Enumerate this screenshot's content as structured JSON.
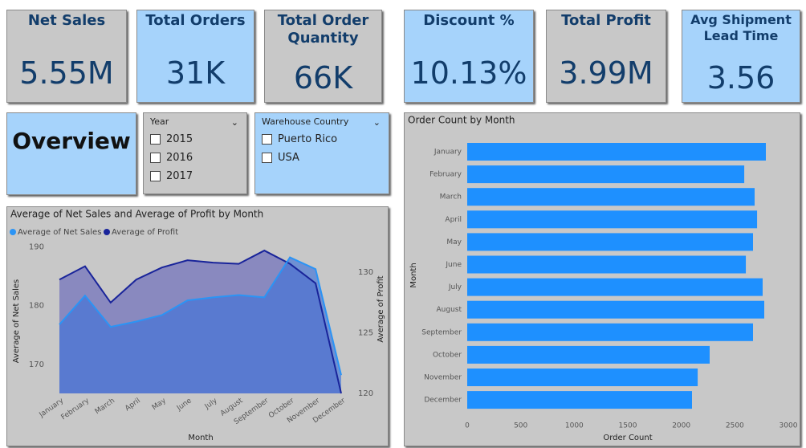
{
  "kpis": [
    {
      "label": "Net Sales",
      "value": "5.55M"
    },
    {
      "label": "Total Orders",
      "value": "31K"
    },
    {
      "label": "Total Order Quantity",
      "value": "66K"
    },
    {
      "label": "Discount %",
      "value": "10.13%"
    },
    {
      "label": "Total Profit",
      "value": "3.99M"
    },
    {
      "label": "Avg Shipment Lead Time",
      "value": "3.56"
    }
  ],
  "overview": "Overview",
  "slicers": [
    {
      "title": "Year",
      "options": [
        "2015",
        "2016",
        "2017"
      ]
    },
    {
      "title": "Warehouse Country",
      "options": [
        "Puerto Rico",
        "USA"
      ]
    }
  ],
  "chart_data": [
    {
      "type": "area",
      "title": "Average of Net Sales and Average of Profit by Month",
      "x_label": "Month",
      "y_label": "Average of Net Sales",
      "y2_label": "Average of Profit",
      "categories": [
        "January",
        "February",
        "March",
        "April",
        "May",
        "June",
        "July",
        "August",
        "September",
        "October",
        "November",
        "December"
      ],
      "series": [
        {
          "name": "Average of Net Sales",
          "color": "#2b94f5",
          "values": [
            176.8,
            181.7,
            176.4,
            177.3,
            178.4,
            180.9,
            181.4,
            181.8,
            181.4,
            188.2,
            186.2,
            168.2
          ]
        },
        {
          "name": "Average of  Profit",
          "color": "#19249a",
          "axis": "y2",
          "values": [
            129.4,
            130.5,
            127.5,
            129.4,
            130.4,
            131.0,
            130.8,
            130.7,
            131.8,
            130.7,
            129.1,
            120.0
          ]
        }
      ],
      "ylim": [
        165.1,
        191
      ],
      "yticks": [
        170,
        180,
        190
      ],
      "y2lim": [
        120,
        132.6
      ],
      "y2ticks": [
        120,
        125,
        130
      ]
    },
    {
      "type": "bar",
      "orientation": "horizontal",
      "title": "Order Count by Month",
      "x_label": "Order Count",
      "y_label": "Month",
      "categories": [
        "January",
        "February",
        "March",
        "April",
        "May",
        "June",
        "July",
        "August",
        "September",
        "October",
        "November",
        "December"
      ],
      "values": [
        2790,
        2588,
        2685,
        2708,
        2670,
        2603,
        2760,
        2775,
        2670,
        2265,
        2153,
        2100
      ],
      "color": "#1e90ff",
      "xlim": [
        0,
        3000
      ],
      "xticks": [
        0,
        500,
        1000,
        1500,
        2000,
        2500,
        3000
      ]
    }
  ]
}
